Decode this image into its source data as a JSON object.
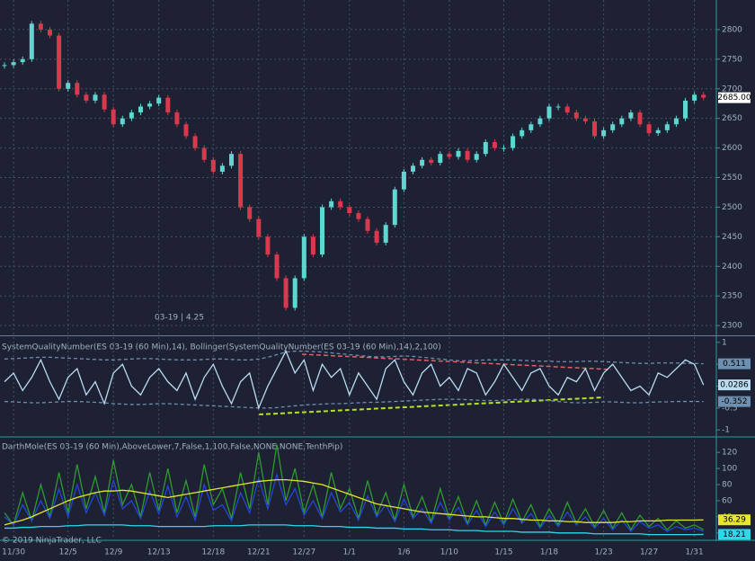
{
  "chart_data": [
    {
      "type": "candlestick",
      "annotation": "03-19 | 4.25",
      "categories": [
        null,
        "11/30",
        null,
        null,
        null,
        null,
        null,
        "12/5",
        null,
        null,
        null,
        null,
        "12/9",
        null,
        null,
        null,
        null,
        "12/13",
        null,
        null,
        null,
        null,
        null,
        "12/18",
        null,
        null,
        null,
        null,
        "12/21",
        null,
        null,
        null,
        null,
        "12/27",
        null,
        null,
        null,
        null,
        "1/1",
        null,
        null,
        null,
        null,
        null,
        "1/6",
        null,
        null,
        null,
        null,
        "1/10",
        null,
        null,
        null,
        null,
        null,
        "1/15",
        null,
        null,
        null,
        null,
        "1/18",
        null,
        null,
        null,
        null,
        null,
        "1/23",
        null,
        null,
        null,
        null,
        "1/27",
        null,
        null,
        null,
        null,
        "1/31",
        null
      ],
      "close": [
        2740,
        2745,
        2750,
        2810,
        2800,
        2790,
        2700,
        2710,
        2690,
        2680,
        2690,
        2665,
        2640,
        2650,
        2660,
        2670,
        2675,
        2685,
        2660,
        2640,
        2620,
        2600,
        2580,
        2560,
        2570,
        2590,
        2500,
        2480,
        2450,
        2420,
        2380,
        2330,
        2380,
        2450,
        2420,
        2500,
        2510,
        2500,
        2490,
        2480,
        2460,
        2440,
        2470,
        2530,
        2560,
        2570,
        2580,
        2575,
        2590,
        2585,
        2595,
        2580,
        2590,
        2610,
        2600,
        2600,
        2620,
        2630,
        2640,
        2650,
        2670,
        2670,
        2660,
        2650,
        2645,
        2620,
        2630,
        2640,
        2650,
        2660,
        2640,
        2625,
        2630,
        2640,
        2650,
        2680,
        2690,
        2685
      ],
      "color_up": "#5fd6d0",
      "color_down": "#d8394c",
      "last_price": {
        "value": 2685,
        "label": "2685.00"
      },
      "ylim": [
        2285,
        2850
      ],
      "yticks": [
        2300,
        2350,
        2400,
        2450,
        2500,
        2550,
        2600,
        2650,
        2700,
        2750,
        2800
      ],
      "grid": true
    },
    {
      "type": "line",
      "title": "SystemQualityNumber(ES 03-19 (60 Min),14), Bollinger(SystemQualityNumber(ES 03-19 (60 Min),14),2,100)",
      "series": [
        {
          "color": "#6d8fb0",
          "dashed": true,
          "tag": true,
          "values": [
            0.62,
            0.63,
            0.64,
            0.65,
            0.66,
            0.66,
            0.65,
            0.64,
            0.63,
            0.62,
            0.61,
            0.6,
            0.6,
            0.61,
            0.62,
            0.63,
            0.63,
            0.62,
            0.61,
            0.6,
            0.6,
            0.6,
            0.61,
            0.62,
            0.62,
            0.61,
            0.6,
            0.6,
            0.62,
            0.66,
            0.72,
            0.78,
            0.8,
            0.8,
            0.79,
            0.78,
            0.76,
            0.74,
            0.72,
            0.7,
            0.68,
            0.67,
            0.67,
            0.68,
            0.69,
            0.68,
            0.66,
            0.64,
            0.62,
            0.6,
            0.58,
            0.58,
            0.59,
            0.6,
            0.6,
            0.6,
            0.6,
            0.59,
            0.58,
            0.57,
            0.57,
            0.56,
            0.56,
            0.56,
            0.57,
            0.57,
            0.56,
            0.55,
            0.54,
            0.53,
            0.52,
            0.52,
            0.53,
            0.53,
            0.53,
            0.52,
            0.52,
            0.511
          ]
        },
        {
          "color": "#6d8fb0",
          "dashed": true,
          "tag": true,
          "values": [
            -0.35,
            -0.36,
            -0.37,
            -0.38,
            -0.38,
            -0.37,
            -0.36,
            -0.35,
            -0.35,
            -0.36,
            -0.37,
            -0.38,
            -0.4,
            -0.41,
            -0.42,
            -0.42,
            -0.41,
            -0.4,
            -0.4,
            -0.41,
            -0.42,
            -0.43,
            -0.44,
            -0.45,
            -0.46,
            -0.47,
            -0.48,
            -0.49,
            -0.5,
            -0.5,
            -0.49,
            -0.47,
            -0.45,
            -0.43,
            -0.42,
            -0.41,
            -0.4,
            -0.4,
            -0.39,
            -0.38,
            -0.37,
            -0.37,
            -0.36,
            -0.35,
            -0.34,
            -0.33,
            -0.32,
            -0.31,
            -0.3,
            -0.3,
            -0.3,
            -0.31,
            -0.32,
            -0.33,
            -0.33,
            -0.32,
            -0.31,
            -0.3,
            -0.3,
            -0.31,
            -0.33,
            -0.35,
            -0.37,
            -0.38,
            -0.38,
            -0.37,
            -0.36,
            -0.36,
            -0.37,
            -0.38,
            -0.38,
            -0.37,
            -0.36,
            -0.36,
            -0.35,
            -0.35,
            -0.35,
            -0.352
          ]
        },
        {
          "color": "#b9dcf0",
          "dashed": false,
          "tag": true,
          "values": [
            0.1,
            0.3,
            -0.1,
            0.2,
            0.6,
            0.1,
            -0.3,
            0.2,
            0.4,
            -0.2,
            0.1,
            -0.4,
            0.3,
            0.5,
            0.0,
            -0.2,
            0.2,
            0.4,
            0.1,
            -0.1,
            0.3,
            -0.3,
            0.2,
            0.5,
            0.0,
            -0.4,
            0.1,
            0.3,
            -0.5,
            0.0,
            0.4,
            0.8,
            0.3,
            0.6,
            -0.1,
            0.5,
            0.2,
            0.4,
            -0.2,
            0.3,
            0.0,
            -0.3,
            0.4,
            0.6,
            0.1,
            -0.2,
            0.3,
            0.5,
            0.0,
            0.2,
            -0.1,
            0.4,
            0.3,
            -0.2,
            0.1,
            0.5,
            0.2,
            -0.1,
            0.3,
            0.4,
            0.0,
            -0.2,
            0.2,
            0.1,
            0.4,
            -0.1,
            0.3,
            0.5,
            0.2,
            -0.1,
            0.0,
            -0.2,
            0.3,
            0.2,
            0.4,
            0.6,
            0.5,
            0.0286
          ]
        }
      ],
      "ylim": [
        -1.14,
        1.12
      ],
      "yticks": [
        -1,
        -0.5,
        0,
        0.5,
        1
      ]
    },
    {
      "type": "line",
      "title": "DarthMole(ES 03-19 (60 Min),AboveLower,7,False,1,100,False,NONE,NONE,TenthPip)",
      "copyright": "© 2019 NinjaTrader, LLC",
      "series": [
        {
          "color": "#2f9a2f",
          "dashed": false,
          "tag": false,
          "values": [
            45,
            30,
            70,
            35,
            80,
            40,
            95,
            45,
            105,
            50,
            90,
            45,
            110,
            55,
            80,
            40,
            95,
            48,
            100,
            45,
            85,
            40,
            105,
            55,
            75,
            38,
            95,
            50,
            120,
            55,
            130,
            60,
            100,
            45,
            80,
            40,
            95,
            50,
            75,
            38,
            85,
            42,
            70,
            36,
            80,
            40,
            65,
            34,
            75,
            38,
            65,
            32,
            60,
            30,
            58,
            32,
            62,
            34,
            55,
            28,
            50,
            30,
            58,
            32,
            50,
            28,
            48,
            26,
            45,
            24,
            42,
            28,
            38,
            24,
            35,
            26,
            30,
            24
          ]
        },
        {
          "color": "#2546d8",
          "dashed": false,
          "tag": false,
          "values": [
            40,
            30,
            55,
            35,
            60,
            38,
            75,
            40,
            80,
            45,
            70,
            42,
            85,
            50,
            60,
            38,
            72,
            44,
            78,
            40,
            65,
            36,
            80,
            48,
            55,
            35,
            70,
            45,
            88,
            50,
            92,
            55,
            75,
            42,
            60,
            38,
            70,
            46,
            58,
            36,
            66,
            40,
            55,
            34,
            62,
            38,
            50,
            32,
            58,
            36,
            52,
            30,
            48,
            28,
            46,
            30,
            50,
            32,
            44,
            26,
            42,
            28,
            46,
            30,
            40,
            26,
            38,
            24,
            36,
            22,
            34,
            26,
            30,
            22,
            28,
            24,
            26,
            22
          ]
        },
        {
          "color": "#e6e62a",
          "dashed": false,
          "tag": true,
          "values": [
            30,
            33,
            36,
            40,
            45,
            50,
            55,
            60,
            64,
            67,
            70,
            72,
            72,
            73,
            72,
            70,
            68,
            66,
            64,
            66,
            68,
            70,
            72,
            74,
            76,
            78,
            80,
            82,
            84,
            85,
            86,
            86,
            85,
            84,
            82,
            80,
            76,
            72,
            68,
            64,
            60,
            56,
            54,
            52,
            50,
            48,
            46,
            45,
            44,
            43,
            42,
            41,
            40,
            40,
            39,
            38,
            38,
            37,
            36,
            36,
            35,
            35,
            34,
            34,
            33,
            33,
            33,
            33,
            34,
            34,
            35,
            35,
            35,
            36,
            36,
            36,
            36,
            36.29
          ]
        },
        {
          "color": "#2ed8ea",
          "dashed": false,
          "tag": true,
          "values": [
            26,
            26,
            27,
            27,
            28,
            28,
            28,
            29,
            29,
            30,
            30,
            30,
            30,
            30,
            29,
            29,
            29,
            28,
            28,
            28,
            28,
            28,
            28,
            29,
            29,
            29,
            29,
            30,
            30,
            30,
            30,
            30,
            29,
            29,
            29,
            28,
            28,
            28,
            27,
            27,
            27,
            26,
            26,
            26,
            25,
            25,
            25,
            24,
            24,
            24,
            23,
            23,
            23,
            22,
            22,
            22,
            22,
            21,
            21,
            21,
            21,
            20,
            20,
            20,
            20,
            19,
            19,
            19,
            19,
            19,
            19,
            18,
            18,
            18,
            18,
            18,
            18,
            18.21
          ]
        }
      ],
      "ylim": [
        12,
        138
      ],
      "yticks": [
        20,
        40,
        60,
        80,
        100,
        120
      ]
    }
  ]
}
